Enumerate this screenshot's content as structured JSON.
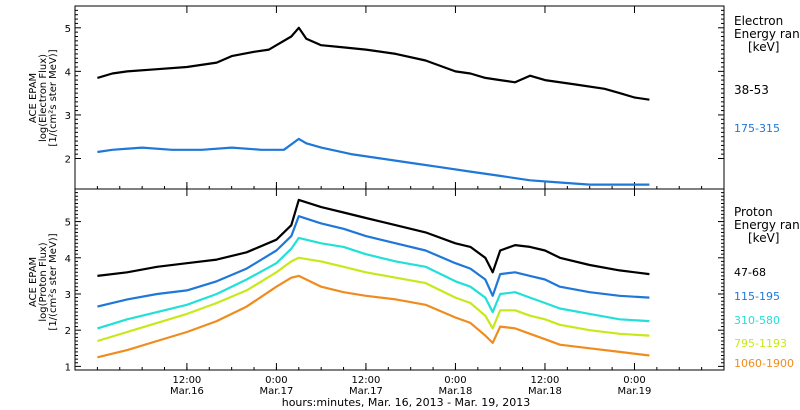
{
  "chart_data": [
    {
      "type": "line",
      "panel": "electron",
      "ylabel_lines": [
        "ACE EPAM",
        "log(Electron Flux)",
        "[1/(cm²s ster MeV)]"
      ],
      "legend_title": [
        "Electron",
        "Energy range",
        "[keV]"
      ],
      "ylim": [
        1.3,
        5.5
      ],
      "yticks": [
        "1",
        "2",
        "3",
        "4",
        "5"
      ],
      "grid": false,
      "series": [
        {
          "name": "38-53",
          "color": "#000000",
          "points": [
            [
              0,
              3.85
            ],
            [
              2,
              3.95
            ],
            [
              4,
              4.0
            ],
            [
              8,
              4.05
            ],
            [
              12,
              4.1
            ],
            [
              16,
              4.2
            ],
            [
              18,
              4.35
            ],
            [
              21,
              4.45
            ],
            [
              23,
              4.5
            ],
            [
              24,
              4.6
            ],
            [
              26,
              4.8
            ],
            [
              27,
              5.0
            ],
            [
              28,
              4.75
            ],
            [
              30,
              4.6
            ],
            [
              33,
              4.55
            ],
            [
              36,
              4.5
            ],
            [
              40,
              4.4
            ],
            [
              44,
              4.25
            ],
            [
              48,
              4.0
            ],
            [
              50,
              3.95
            ],
            [
              52,
              3.85
            ],
            [
              54,
              3.8
            ],
            [
              56,
              3.75
            ],
            [
              58,
              3.9
            ],
            [
              60,
              3.8
            ],
            [
              64,
              3.7
            ],
            [
              68,
              3.6
            ],
            [
              70,
              3.5
            ],
            [
              72,
              3.4
            ],
            [
              74,
              3.35
            ]
          ]
        },
        {
          "name": "175-315",
          "color": "#1f77d8",
          "points": [
            [
              0,
              2.15
            ],
            [
              2,
              2.2
            ],
            [
              6,
              2.25
            ],
            [
              10,
              2.2
            ],
            [
              14,
              2.2
            ],
            [
              18,
              2.25
            ],
            [
              22,
              2.2
            ],
            [
              25,
              2.2
            ],
            [
              27,
              2.45
            ],
            [
              28,
              2.35
            ],
            [
              30,
              2.25
            ],
            [
              34,
              2.1
            ],
            [
              38,
              2.0
            ],
            [
              42,
              1.9
            ],
            [
              46,
              1.8
            ],
            [
              50,
              1.7
            ],
            [
              54,
              1.6
            ],
            [
              58,
              1.5
            ],
            [
              62,
              1.45
            ],
            [
              66,
              1.4
            ],
            [
              70,
              1.4
            ],
            [
              74,
              1.4
            ]
          ]
        }
      ]
    },
    {
      "type": "line",
      "panel": "proton",
      "ylabel_lines": [
        "ACE EPAM",
        "log(Proton Flux)",
        "[1/(cm²s ster MeV)]"
      ],
      "legend_title": [
        "Proton",
        "Energy range",
        "[keV]"
      ],
      "ylim": [
        0.9,
        5.9
      ],
      "yticks": [
        "1",
        "2",
        "3",
        "4",
        "5"
      ],
      "grid": false,
      "series": [
        {
          "name": "47-68",
          "color": "#000000",
          "points": [
            [
              0,
              3.5
            ],
            [
              4,
              3.6
            ],
            [
              8,
              3.75
            ],
            [
              12,
              3.85
            ],
            [
              16,
              3.95
            ],
            [
              20,
              4.15
            ],
            [
              24,
              4.5
            ],
            [
              26,
              4.9
            ],
            [
              27,
              5.6
            ],
            [
              30,
              5.4
            ],
            [
              33,
              5.25
            ],
            [
              36,
              5.1
            ],
            [
              40,
              4.9
            ],
            [
              44,
              4.7
            ],
            [
              48,
              4.4
            ],
            [
              50,
              4.3
            ],
            [
              52,
              4.0
            ],
            [
              53,
              3.6
            ],
            [
              54,
              4.2
            ],
            [
              56,
              4.35
            ],
            [
              58,
              4.3
            ],
            [
              60,
              4.2
            ],
            [
              62,
              4.0
            ],
            [
              66,
              3.8
            ],
            [
              70,
              3.65
            ],
            [
              74,
              3.55
            ]
          ]
        },
        {
          "name": "115-195",
          "color": "#1f77d8",
          "points": [
            [
              0,
              2.65
            ],
            [
              4,
              2.85
            ],
            [
              8,
              3.0
            ],
            [
              12,
              3.1
            ],
            [
              16,
              3.35
            ],
            [
              20,
              3.7
            ],
            [
              24,
              4.2
            ],
            [
              26,
              4.6
            ],
            [
              27,
              5.15
            ],
            [
              30,
              4.95
            ],
            [
              33,
              4.8
            ],
            [
              36,
              4.6
            ],
            [
              40,
              4.4
            ],
            [
              44,
              4.2
            ],
            [
              48,
              3.85
            ],
            [
              50,
              3.7
            ],
            [
              52,
              3.4
            ],
            [
              53,
              2.95
            ],
            [
              54,
              3.55
            ],
            [
              56,
              3.6
            ],
            [
              58,
              3.5
            ],
            [
              60,
              3.4
            ],
            [
              62,
              3.2
            ],
            [
              66,
              3.05
            ],
            [
              70,
              2.95
            ],
            [
              74,
              2.9
            ]
          ]
        },
        {
          "name": "310-580",
          "color": "#22e0d8",
          "points": [
            [
              0,
              2.05
            ],
            [
              4,
              2.3
            ],
            [
              8,
              2.5
            ],
            [
              12,
              2.7
            ],
            [
              16,
              3.0
            ],
            [
              20,
              3.4
            ],
            [
              24,
              3.85
            ],
            [
              26,
              4.25
            ],
            [
              27,
              4.55
            ],
            [
              30,
              4.4
            ],
            [
              33,
              4.3
            ],
            [
              36,
              4.1
            ],
            [
              40,
              3.9
            ],
            [
              44,
              3.75
            ],
            [
              48,
              3.35
            ],
            [
              50,
              3.2
            ],
            [
              52,
              2.9
            ],
            [
              53,
              2.5
            ],
            [
              54,
              3.0
            ],
            [
              56,
              3.05
            ],
            [
              58,
              2.9
            ],
            [
              60,
              2.75
            ],
            [
              62,
              2.6
            ],
            [
              66,
              2.45
            ],
            [
              70,
              2.3
            ],
            [
              74,
              2.25
            ]
          ]
        },
        {
          "name": "795-1193",
          "color": "#c8e81a",
          "points": [
            [
              0,
              1.7
            ],
            [
              4,
              1.95
            ],
            [
              8,
              2.2
            ],
            [
              12,
              2.45
            ],
            [
              16,
              2.75
            ],
            [
              20,
              3.1
            ],
            [
              24,
              3.6
            ],
            [
              26,
              3.9
            ],
            [
              27,
              4.0
            ],
            [
              30,
              3.9
            ],
            [
              33,
              3.75
            ],
            [
              36,
              3.6
            ],
            [
              40,
              3.45
            ],
            [
              44,
              3.3
            ],
            [
              48,
              2.9
            ],
            [
              50,
              2.75
            ],
            [
              52,
              2.4
            ],
            [
              53,
              2.05
            ],
            [
              54,
              2.55
            ],
            [
              56,
              2.55
            ],
            [
              58,
              2.4
            ],
            [
              60,
              2.3
            ],
            [
              62,
              2.15
            ],
            [
              66,
              2.0
            ],
            [
              70,
              1.9
            ],
            [
              74,
              1.85
            ]
          ]
        },
        {
          "name": "1060-1900",
          "color": "#f08c1e",
          "points": [
            [
              0,
              1.25
            ],
            [
              4,
              1.45
            ],
            [
              8,
              1.7
            ],
            [
              12,
              1.95
            ],
            [
              16,
              2.25
            ],
            [
              20,
              2.65
            ],
            [
              24,
              3.2
            ],
            [
              26,
              3.45
            ],
            [
              27,
              3.5
            ],
            [
              30,
              3.2
            ],
            [
              33,
              3.05
            ],
            [
              36,
              2.95
            ],
            [
              40,
              2.85
            ],
            [
              44,
              2.7
            ],
            [
              48,
              2.35
            ],
            [
              50,
              2.2
            ],
            [
              52,
              1.85
            ],
            [
              53,
              1.65
            ],
            [
              54,
              2.1
            ],
            [
              56,
              2.05
            ],
            [
              58,
              1.9
            ],
            [
              60,
              1.75
            ],
            [
              62,
              1.6
            ],
            [
              66,
              1.5
            ],
            [
              70,
              1.4
            ],
            [
              74,
              1.3
            ]
          ]
        }
      ]
    }
  ],
  "x_axis": {
    "range_hours": [
      -3,
      84
    ],
    "ticks": [
      {
        "h": 12,
        "time": "12:00",
        "date": "Mar.16"
      },
      {
        "h": 24,
        "time": "0:00",
        "date": "Mar.17"
      },
      {
        "h": 36,
        "time": "12:00",
        "date": "Mar.17"
      },
      {
        "h": 48,
        "time": "0:00",
        "date": "Mar.18"
      },
      {
        "h": 60,
        "time": "12:00",
        "date": "Mar.18"
      },
      {
        "h": 72,
        "time": "0:00",
        "date": "Mar.19"
      }
    ],
    "xlabel": "hours:minutes, Mar. 16, 2013 - Mar. 19, 2013"
  }
}
